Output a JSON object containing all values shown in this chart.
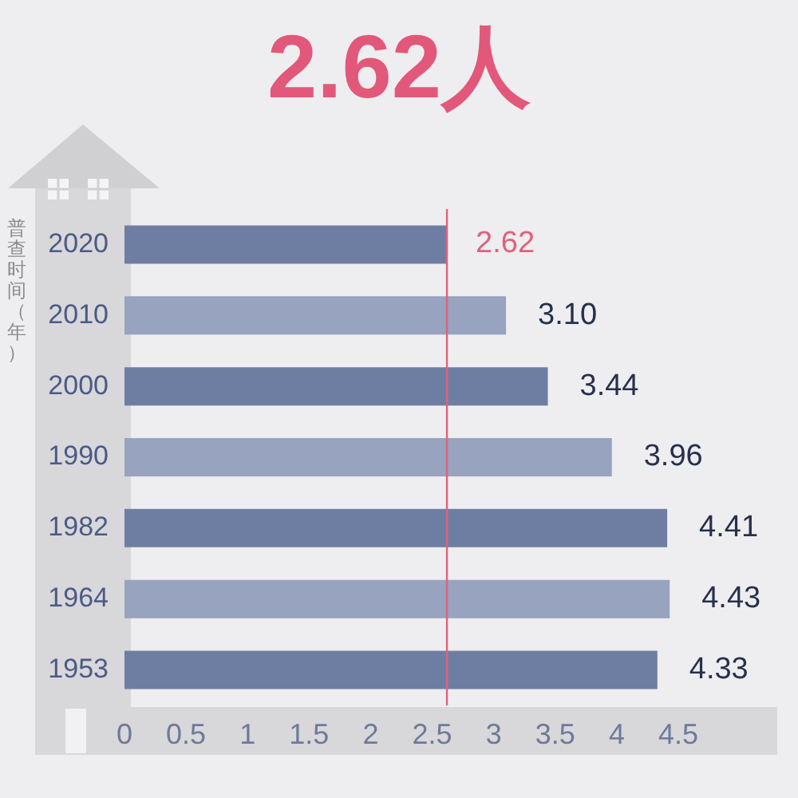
{
  "chart_data": {
    "type": "bar",
    "orientation": "horizontal",
    "title": "2.62人",
    "ylabel": "普查时间（年）",
    "categories": [
      "2020",
      "2010",
      "2000",
      "1990",
      "1982",
      "1964",
      "1953"
    ],
    "values": [
      2.62,
      3.1,
      3.44,
      3.96,
      4.41,
      4.43,
      4.33
    ],
    "colors": [
      "#6e7ea3",
      "#97a3bf",
      "#6e7ea3",
      "#97a3bf",
      "#6e7ea3",
      "#97a3bf",
      "#6e7ea3"
    ],
    "value_labels": [
      null,
      "3.10",
      "3.44",
      "3.96",
      "4.41",
      "4.43",
      "4.33"
    ],
    "xlim": [
      0,
      4.5
    ],
    "xticks": [
      0,
      0.5,
      1,
      1.5,
      2,
      2.5,
      3,
      3.5,
      4,
      4.5
    ],
    "ref_lines": [
      {
        "axis": "x",
        "value": 2.62,
        "label": "2.62",
        "color": "#e0627c"
      }
    ]
  }
}
